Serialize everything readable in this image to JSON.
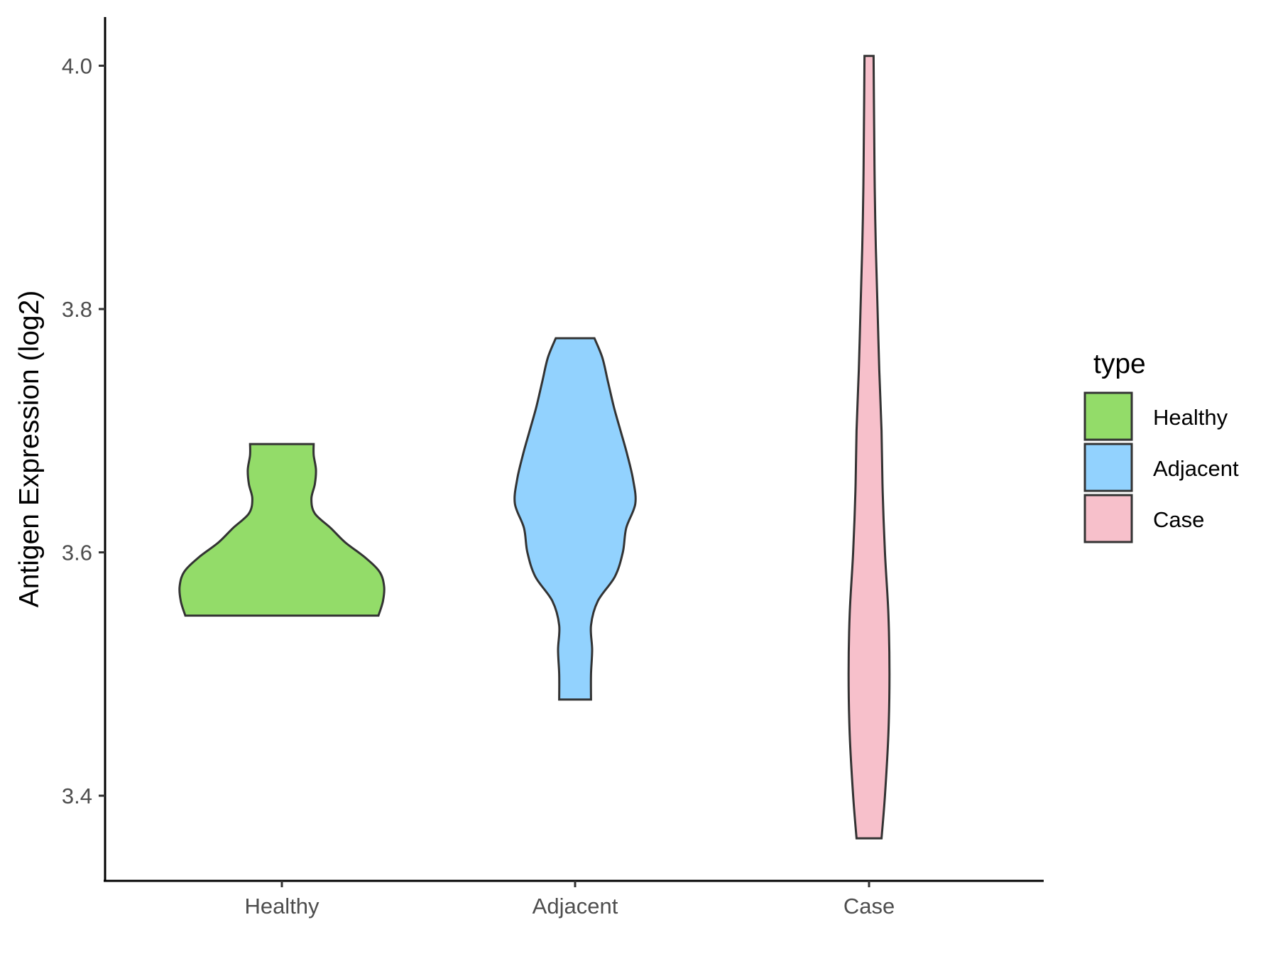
{
  "chart_data": {
    "type": "violin",
    "title": "",
    "xlabel": "",
    "ylabel": "Antigen Expression (log2)",
    "categories": [
      "Healthy",
      "Adjacent",
      "Case"
    ],
    "colors": {
      "Healthy": "#93dc69",
      "Adjacent": "#92d2fe",
      "Case": "#f7c0cb"
    },
    "y_ticks": [
      "3.4",
      "3.6",
      "3.8",
      "4.0"
    ],
    "ylim": [
      3.33,
      4.04
    ],
    "grid": false,
    "legend": {
      "title": "type",
      "placement": "right",
      "items": [
        "Healthy",
        "Adjacent",
        "Case"
      ]
    },
    "series": [
      {
        "name": "Healthy",
        "min": 3.548,
        "max": 3.689,
        "density": [
          [
            3.548,
            0.85
          ],
          [
            3.56,
            0.89
          ],
          [
            3.572,
            0.9
          ],
          [
            3.584,
            0.86
          ],
          [
            3.596,
            0.73
          ],
          [
            3.608,
            0.56
          ],
          [
            3.62,
            0.43
          ],
          [
            3.632,
            0.29
          ],
          [
            3.644,
            0.26
          ],
          [
            3.656,
            0.29
          ],
          [
            3.668,
            0.3
          ],
          [
            3.68,
            0.28
          ],
          [
            3.689,
            0.28
          ]
        ]
      },
      {
        "name": "Adjacent",
        "min": 3.479,
        "max": 3.776,
        "density": [
          [
            3.479,
            0.14
          ],
          [
            3.5,
            0.14
          ],
          [
            3.52,
            0.15
          ],
          [
            3.54,
            0.14
          ],
          [
            3.56,
            0.2
          ],
          [
            3.58,
            0.35
          ],
          [
            3.6,
            0.42
          ],
          [
            3.62,
            0.45
          ],
          [
            3.64,
            0.53
          ],
          [
            3.66,
            0.51
          ],
          [
            3.68,
            0.46
          ],
          [
            3.7,
            0.4
          ],
          [
            3.72,
            0.34
          ],
          [
            3.74,
            0.29
          ],
          [
            3.76,
            0.24
          ],
          [
            3.776,
            0.17
          ]
        ]
      },
      {
        "name": "Case",
        "min": 3.365,
        "max": 4.008,
        "density": [
          [
            3.365,
            0.11
          ],
          [
            3.4,
            0.14
          ],
          [
            3.45,
            0.17
          ],
          [
            3.5,
            0.18
          ],
          [
            3.55,
            0.17
          ],
          [
            3.6,
            0.14
          ],
          [
            3.65,
            0.12
          ],
          [
            3.7,
            0.11
          ],
          [
            3.75,
            0.09
          ],
          [
            3.8,
            0.075
          ],
          [
            3.85,
            0.06
          ],
          [
            3.9,
            0.05
          ],
          [
            3.95,
            0.045
          ],
          [
            4.008,
            0.04
          ]
        ]
      }
    ]
  }
}
